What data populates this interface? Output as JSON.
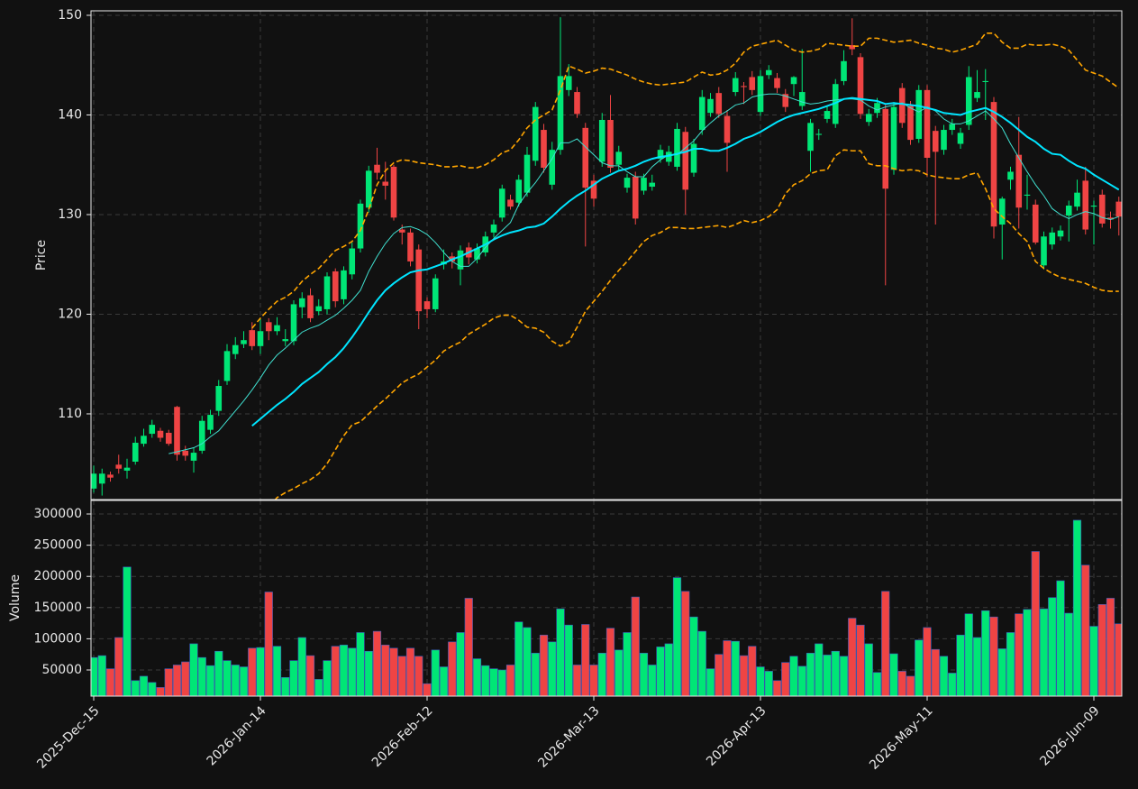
{
  "chart_data": {
    "type": "candlestick",
    "ylabel": "Price",
    "categories": [
      "2025-Dec-15",
      null,
      null,
      null,
      null,
      null,
      null,
      null,
      null,
      null,
      null,
      null,
      null,
      null,
      null,
      null,
      null,
      null,
      null,
      null,
      "2026-Jan-14",
      null,
      null,
      null,
      null,
      null,
      null,
      null,
      null,
      null,
      null,
      null,
      null,
      null,
      null,
      null,
      null,
      null,
      null,
      null,
      "2026-Feb-12",
      null,
      null,
      null,
      null,
      null,
      null,
      null,
      null,
      null,
      null,
      null,
      null,
      null,
      null,
      null,
      null,
      null,
      null,
      null,
      "2026-Mar-13",
      null,
      null,
      null,
      null,
      null,
      null,
      null,
      null,
      null,
      null,
      null,
      null,
      null,
      null,
      null,
      null,
      null,
      null,
      null,
      "2026-Apr-13",
      null,
      null,
      null,
      null,
      null,
      null,
      null,
      null,
      null,
      null,
      null,
      null,
      null,
      null,
      null,
      null,
      null,
      null,
      null,
      "2026-May-11",
      null,
      null,
      null,
      null,
      null,
      null,
      null,
      null,
      null,
      null,
      null,
      null,
      null,
      null,
      null,
      null,
      null,
      null,
      null,
      "2026-Jun-09",
      null,
      null,
      null
    ],
    "open": [
      102.5,
      103,
      103.9,
      104.9,
      104.3,
      105.2,
      107,
      108,
      108.3,
      108.1,
      110.7,
      106.3,
      105.3,
      106.3,
      108.4,
      110.3,
      113.3,
      116,
      117,
      118.4,
      116.8,
      119.2,
      118.3,
      117.3,
      117.3,
      120.7,
      121.9,
      120.3,
      120.5,
      124.3,
      121.5,
      124,
      126.6,
      130.7,
      135,
      133.3,
      134.8,
      128.5,
      128.2,
      126.5,
      121.3,
      120.5,
      125,
      125.8,
      124.5,
      126.7,
      125.5,
      126.2,
      128.2,
      129.7,
      131.5,
      131.2,
      132.2,
      135.4,
      138.5,
      133,
      136.5,
      142.5,
      142.3,
      138.7,
      133.4,
      135.3,
      139.5,
      135,
      132.7,
      133.8,
      132.4,
      132.8,
      135.6,
      135.3,
      134.8,
      138.3,
      134.2,
      138.5,
      140.2,
      142.2,
      139.9,
      142.3,
      142.9,
      143.8,
      140.3,
      144,
      143.7,
      142.1,
      143.1,
      140.9,
      136.4,
      138,
      139.6,
      139.1,
      143.4,
      147,
      145.8,
      139.3,
      140.2,
      140.6,
      134.5,
      142.7,
      140.9,
      137.6,
      142.5,
      138.4,
      136.5,
      138.5,
      137.1,
      139,
      141.7,
      143.3,
      141.3,
      129,
      133.5,
      136,
      131.9,
      131,
      124.9,
      127,
      127.8,
      129.9,
      130.8,
      133.4,
      130.8,
      132,
      129.7,
      131.3
    ],
    "high": [
      104.8,
      104.5,
      104.2,
      105.9,
      105.5,
      107.7,
      108.5,
      109.4,
      108.6,
      108.4,
      110.8,
      106.8,
      106.6,
      109.8,
      110.4,
      113.4,
      117,
      117.7,
      118.3,
      119.2,
      119.5,
      119.6,
      119.7,
      118.5,
      121.4,
      122.2,
      122.6,
      121.5,
      124.2,
      124.6,
      124.8,
      127.2,
      131.5,
      134.9,
      136.7,
      135.3,
      135,
      129,
      128.6,
      127,
      121.7,
      124,
      126.5,
      126.2,
      126.9,
      127.2,
      127.1,
      128.3,
      129.5,
      133,
      132,
      134,
      136.8,
      141.3,
      139.1,
      137.3,
      149.8,
      145.1,
      142.8,
      139.2,
      134,
      140.2,
      142,
      136.9,
      134.1,
      134.3,
      134.1,
      134,
      137,
      136.9,
      139.2,
      138.8,
      137.6,
      142.5,
      142.2,
      142.8,
      140.5,
      144.3,
      143.3,
      144.4,
      144.5,
      145,
      144.2,
      142.6,
      143.9,
      146.6,
      139.6,
      138.6,
      140.9,
      143.6,
      146.5,
      149.7,
      146.2,
      140.6,
      141.7,
      141.1,
      141.3,
      143.2,
      141.4,
      143,
      143,
      138.9,
      139,
      139.6,
      138.7,
      144.9,
      144.5,
      144.6,
      141.8,
      131.8,
      134.8,
      139.8,
      134,
      131.5,
      128.3,
      128.7,
      128.9,
      131.4,
      133.5,
      134.8,
      131.4,
      132.5,
      130.3,
      131.8
    ],
    "low": [
      102.1,
      101.8,
      103.2,
      104,
      103.5,
      104.9,
      106.7,
      107.6,
      107.2,
      106.8,
      105.3,
      105.3,
      104.1,
      106,
      108,
      109.8,
      112.9,
      115.5,
      116.6,
      116.4,
      116,
      117.4,
      117.9,
      116.8,
      116.9,
      119.6,
      119.2,
      119.9,
      120,
      120.7,
      121,
      123.5,
      126.2,
      130.2,
      133.5,
      131.5,
      129.4,
      127,
      124.8,
      118.5,
      119.6,
      120.2,
      124.5,
      124.6,
      122.9,
      125,
      125.1,
      125.8,
      127.7,
      129.3,
      130.5,
      130.8,
      131.8,
      134.9,
      134.2,
      132.5,
      136,
      141.9,
      139.7,
      126.8,
      130.8,
      134.8,
      134.2,
      134.5,
      132.2,
      129,
      132,
      132.4,
      135.2,
      134.9,
      134.4,
      130,
      133.8,
      138,
      139.8,
      139.7,
      134.3,
      141.9,
      141.1,
      142,
      139.9,
      143.6,
      142.2,
      140.3,
      141.9,
      140.5,
      134.3,
      137.5,
      139.2,
      138.7,
      143,
      146,
      139.6,
      138.9,
      139.7,
      122.9,
      134,
      138.7,
      137,
      137.2,
      133.8,
      129,
      136,
      138,
      136.6,
      138.5,
      141.3,
      139.5,
      127.6,
      125.5,
      132.5,
      128.6,
      130.5,
      127,
      124.5,
      126.5,
      127.4,
      127.3,
      130.4,
      128,
      127,
      128.7,
      128.6,
      127.9
    ],
    "close": [
      104,
      104,
      103.6,
      104.5,
      104.6,
      107.1,
      107.8,
      108.9,
      107.6,
      107,
      105.9,
      105.8,
      106.1,
      109.3,
      109.9,
      112.8,
      116.3,
      116.9,
      117.4,
      116.8,
      118.3,
      118.3,
      118.9,
      117.5,
      121,
      121.6,
      119.6,
      120.8,
      123.8,
      121.3,
      124.4,
      126.6,
      131.1,
      134.4,
      134.2,
      132.9,
      129.7,
      128.2,
      125.3,
      120.3,
      120.5,
      123.6,
      125.3,
      125.3,
      126.4,
      125.7,
      126.6,
      127.8,
      129,
      132.6,
      130.8,
      133.5,
      136,
      140.8,
      134.7,
      136.5,
      143.9,
      143.9,
      140.1,
      132.7,
      131.6,
      139.5,
      134.7,
      136.3,
      133.7,
      129.6,
      133.7,
      133.2,
      136.5,
      136.3,
      138.6,
      132.5,
      137.1,
      141.8,
      141.6,
      140.1,
      137.2,
      143.7,
      142.8,
      142.5,
      143.9,
      144.5,
      142.7,
      140.8,
      143.8,
      142.3,
      139.2,
      138.1,
      140.4,
      143.1,
      145.4,
      146.6,
      140.1,
      140.1,
      141.2,
      132.6,
      140.8,
      139.2,
      137.5,
      142.5,
      135.7,
      136.3,
      138.5,
      139.1,
      138.2,
      143.8,
      142.3,
      143.4,
      128.8,
      131.6,
      134.3,
      130.7,
      132,
      127.2,
      127.8,
      128.2,
      128.4,
      130.9,
      132.2,
      128.5,
      130.9,
      129.1,
      129.5,
      129.8
    ],
    "up_color": "#00e676",
    "down_color": "#ef4444",
    "ylim": [
      101.4,
      150.45
    ],
    "yticks": [
      110,
      120,
      130,
      140,
      150
    ],
    "grid": true,
    "overlays": [
      {
        "color": "#40e0d0",
        "linewidth": 1,
        "linestyle": "solid",
        "values": [
          null,
          null,
          null,
          null,
          null,
          null,
          null,
          null,
          null,
          106,
          106.2,
          106.4,
          106.6,
          107,
          107.7,
          108.3,
          109.3,
          110.3,
          111.3,
          112.4,
          113.6,
          114.9,
          115.9,
          116.6,
          117.4,
          118.2,
          118.6,
          118.9,
          119.4,
          119.9,
          120.6,
          121.4,
          122.4,
          124.3,
          125.8,
          127.1,
          128.1,
          128.7,
          128.8,
          128.5,
          128,
          127.2,
          126.2,
          125.3,
          124.8,
          124.8,
          125.6,
          126.7,
          127.6,
          128.4,
          129.2,
          131,
          132.2,
          133.2,
          134.4,
          135.6,
          137.2,
          137.2,
          137.6,
          136.8,
          136,
          135.2,
          134.9,
          134.9,
          134.3,
          133.8,
          133.8,
          134.8,
          135.5,
          136,
          136,
          136.7,
          137.4,
          138.4,
          139.2,
          139.9,
          140.4,
          141,
          141.2,
          141.8,
          142,
          142.1,
          142.1,
          141.9,
          141.6,
          141.3,
          141.1,
          141.2,
          141.4,
          141.5,
          141.6,
          141.6,
          141.5,
          140.9,
          140.5,
          140.8,
          141,
          141.2,
          140.7,
          140.3,
          140.8,
          140.4,
          139.6,
          139.1,
          139.1,
          139.4,
          139.9,
          140.4,
          139.6,
          138.7,
          137.1,
          135.7,
          134.3,
          133,
          131.9,
          130.6,
          130,
          129.6,
          130,
          130.3,
          130.1,
          129.7,
          129.5,
          129.8
        ]
      },
      {
        "color": "#00e5ff",
        "linewidth": 2,
        "linestyle": "solid",
        "values": [
          null,
          null,
          null,
          null,
          null,
          null,
          null,
          null,
          null,
          null,
          null,
          null,
          null,
          null,
          null,
          null,
          null,
          null,
          null,
          108.8,
          109.5,
          110.2,
          110.9,
          111.5,
          112.2,
          113,
          113.6,
          114.2,
          115,
          115.7,
          116.6,
          117.7,
          118.9,
          120.2,
          121.4,
          122.4,
          123.1,
          123.7,
          124.2,
          124.4,
          124.5,
          124.8,
          125.1,
          125.5,
          125.8,
          126.2,
          126.6,
          127,
          127.5,
          127.9,
          128.2,
          128.4,
          128.7,
          128.8,
          129.1,
          129.8,
          130.6,
          131.3,
          131.9,
          132.4,
          133,
          133.6,
          134,
          134.4,
          134.6,
          134.9,
          135.3,
          135.6,
          135.8,
          135.9,
          136.1,
          136.3,
          136.6,
          136.6,
          136.4,
          136.4,
          136.7,
          137.1,
          137.6,
          137.9,
          138.3,
          138.8,
          139.3,
          139.7,
          140,
          140.2,
          140.4,
          140.6,
          140.9,
          141.2,
          141.6,
          141.7,
          141.6,
          141.5,
          141.4,
          141.1,
          141.2,
          141.1,
          141,
          140.9,
          140.7,
          140.5,
          140.2,
          140.1,
          140,
          140.3,
          140.5,
          140.7,
          140.3,
          139.8,
          139.2,
          138.5,
          137.8,
          137.3,
          136.6,
          136.1,
          136,
          135.4,
          134.9,
          134.6,
          134,
          133.5,
          133,
          132.5
        ]
      },
      {
        "color": "#ffa500",
        "linewidth": 1.6,
        "linestyle": "dashed",
        "values": [
          null,
          null,
          null,
          null,
          null,
          null,
          null,
          null,
          null,
          null,
          null,
          null,
          null,
          null,
          null,
          null,
          null,
          null,
          null,
          118.6,
          119.6,
          120.5,
          121.3,
          121.7,
          122.3,
          123.3,
          124,
          124.6,
          125.5,
          126.4,
          126.8,
          127.3,
          128.4,
          130.5,
          133,
          134.4,
          135.2,
          135.5,
          135.4,
          135.2,
          135.1,
          135,
          134.8,
          134.8,
          134.9,
          134.7,
          134.7,
          135,
          135.5,
          136.2,
          136.5,
          137.5,
          138.7,
          139.5,
          140,
          140.5,
          142.5,
          144.9,
          144.6,
          144.2,
          144.4,
          144.7,
          144.6,
          144.3,
          144,
          143.6,
          143.3,
          143.1,
          143,
          143.1,
          143.2,
          143.3,
          143.8,
          144.3,
          144,
          144.1,
          144.5,
          145.2,
          146.3,
          146.9,
          147.1,
          147.3,
          147.5,
          147,
          146.5,
          146.3,
          146.4,
          146.6,
          147.2,
          147.1,
          147,
          146.9,
          146.9,
          147.7,
          147.7,
          147.5,
          147.3,
          147.4,
          147.5,
          147.2,
          147,
          146.7,
          146.6,
          146.3,
          146.5,
          146.8,
          147.1,
          148.2,
          148.2,
          147.3,
          146.7,
          146.7,
          147.1,
          147,
          147,
          147.1,
          146.9,
          146.5,
          145.5,
          144.5,
          144.2,
          143.9,
          143.3,
          142.7
        ]
      },
      {
        "color": "#ffa500",
        "linewidth": 1.6,
        "linestyle": "dashed",
        "values": [
          null,
          null,
          null,
          null,
          null,
          null,
          null,
          null,
          null,
          null,
          null,
          null,
          null,
          null,
          null,
          null,
          null,
          null,
          null,
          99,
          99.9,
          100.6,
          101.6,
          102.1,
          102.5,
          103,
          103.4,
          104,
          105,
          106.4,
          107.8,
          108.9,
          109.2,
          110,
          110.8,
          111.5,
          112.3,
          113.1,
          113.6,
          114,
          114.7,
          115.4,
          116.3,
          116.8,
          117.2,
          118,
          118.5,
          119,
          119.6,
          119.9,
          119.9,
          119.4,
          118.7,
          118.6,
          118.2,
          117.3,
          116.8,
          117.2,
          118.7,
          120.3,
          121.3,
          122.3,
          123.4,
          124.4,
          125.3,
          126.3,
          127.3,
          127.9,
          128.2,
          128.7,
          128.7,
          128.6,
          128.6,
          128.7,
          128.8,
          128.9,
          128.7,
          129,
          129.4,
          129.2,
          129.4,
          129.8,
          130.5,
          132.1,
          133,
          133.4,
          134.1,
          134.4,
          134.5,
          135.9,
          136.5,
          136.4,
          136.4,
          135.1,
          134.9,
          134.9,
          134.6,
          134.4,
          134.5,
          134.4,
          134,
          133.8,
          133.7,
          133.6,
          133.6,
          134,
          134.2,
          132.6,
          130.6,
          129.8,
          129.1,
          128.1,
          127.3,
          125.3,
          124.6,
          124.1,
          123.7,
          123.5,
          123.3,
          123.1,
          122.7,
          122.4,
          122.3,
          122.3
        ]
      }
    ],
    "volume": {
      "ylabel": "Volume",
      "ylim": [
        8100,
        321700
      ],
      "yticks": [
        50000,
        100000,
        150000,
        200000,
        250000,
        300000
      ],
      "values": [
        70000,
        73000,
        52000,
        102000,
        215000,
        33000,
        40000,
        30000,
        22000,
        52000,
        58000,
        63000,
        92000,
        70000,
        57000,
        80000,
        65000,
        58000,
        55000,
        85000,
        86000,
        175000,
        88000,
        38000,
        65000,
        102000,
        73000,
        35000,
        65000,
        88000,
        90000,
        85000,
        110000,
        80000,
        112000,
        90000,
        85000,
        72000,
        85000,
        72000,
        28000,
        82000,
        55000,
        95000,
        110000,
        165000,
        68000,
        57000,
        52000,
        50000,
        58000,
        127000,
        118000,
        77000,
        106000,
        95000,
        148000,
        122000,
        58000,
        123000,
        58000,
        77000,
        117000,
        82000,
        110000,
        167000,
        77000,
        58000,
        87000,
        92000,
        198000,
        176000,
        135000,
        112000,
        52000,
        75000,
        97000,
        96000,
        73000,
        88000,
        55000,
        48000,
        33000,
        62000,
        72000,
        56000,
        77000,
        92000,
        74000,
        80000,
        72000,
        133000,
        122000,
        92000,
        46000,
        176000,
        76000,
        48000,
        40000,
        98000,
        118000,
        83000,
        72000,
        45000,
        106000,
        140000,
        102000,
        145000,
        135000,
        84000,
        110000,
        140000,
        147000,
        240000,
        148000,
        166000,
        193000,
        141000,
        290000,
        218000,
        120000,
        155000,
        165000,
        124000
      ]
    }
  }
}
